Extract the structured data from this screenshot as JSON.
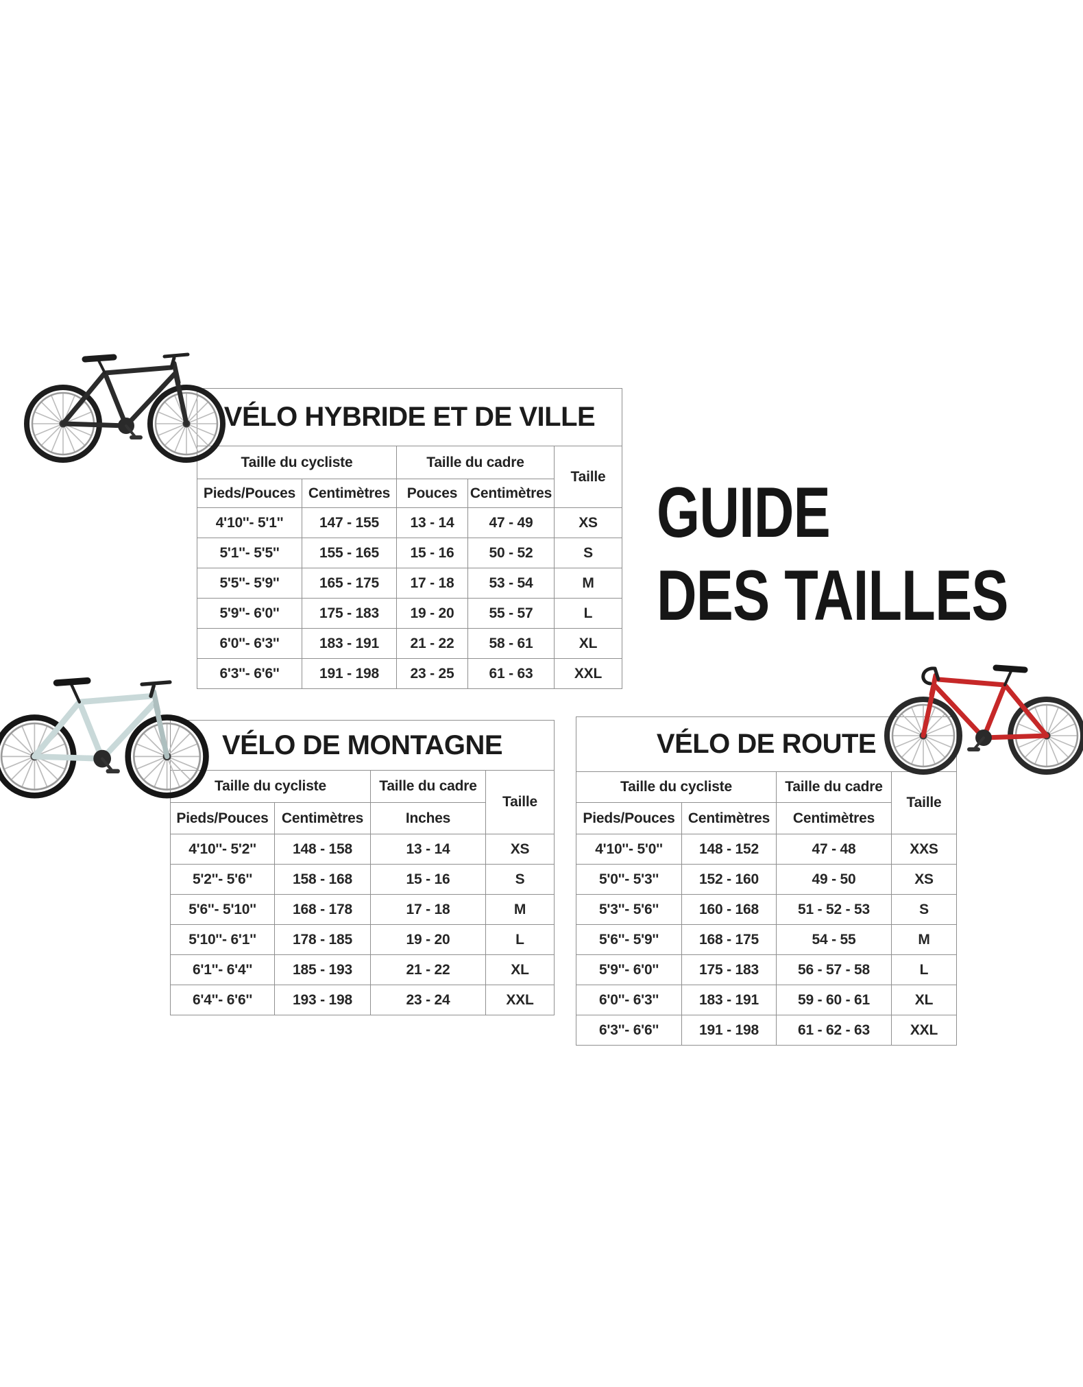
{
  "page_title": {
    "line1": "GUIDE",
    "line2": "DES TAILLES"
  },
  "images": {
    "hybrid_bike": "hybrid-city-bike-photo",
    "mountain_bike": "mountain-bike-photo",
    "road_bike": "road-bike-photo"
  },
  "tables": [
    {
      "id": "hybrid",
      "title": "VÉLO HYBRIDE ET DE VILLE",
      "rider_group_label": "Taille du cycliste",
      "frame_group_label": "Taille du cadre",
      "size_label": "Taille",
      "rider_columns": [
        "Pieds/Pouces",
        "Centimètres"
      ],
      "frame_columns": [
        "Pouces",
        "Centimètres"
      ],
      "rows": [
        [
          "4'10''- 5'1''",
          "147 - 155",
          "13 - 14",
          "47 - 49",
          "XS"
        ],
        [
          "5'1''- 5'5''",
          "155 - 165",
          "15 - 16",
          "50 - 52",
          "S"
        ],
        [
          "5'5''- 5'9''",
          "165 - 175",
          "17 - 18",
          "53 - 54",
          "M"
        ],
        [
          "5'9''- 6'0''",
          "175 - 183",
          "19 - 20",
          "55 - 57",
          "L"
        ],
        [
          "6'0''- 6'3''",
          "183 - 191",
          "21 - 22",
          "58 - 61",
          "XL"
        ],
        [
          "6'3''- 6'6''",
          "191 - 198",
          "23 - 25",
          "61 - 63",
          "XXL"
        ]
      ]
    },
    {
      "id": "mountain",
      "title": "VÉLO DE MONTAGNE",
      "rider_group_label": "Taille du cycliste",
      "frame_group_label": "Taille du cadre",
      "size_label": "Taille",
      "rider_columns": [
        "Pieds/Pouces",
        "Centimètres"
      ],
      "frame_columns": [
        "Inches"
      ],
      "rows": [
        [
          "4'10''- 5'2''",
          "148 - 158",
          "13 - 14",
          "XS"
        ],
        [
          "5'2''- 5'6''",
          "158 - 168",
          "15 - 16",
          "S"
        ],
        [
          "5'6''- 5'10''",
          "168 - 178",
          "17 - 18",
          "M"
        ],
        [
          "5'10''- 6'1''",
          "178 - 185",
          "19 - 20",
          "L"
        ],
        [
          "6'1''- 6'4''",
          "185 - 193",
          "21 - 22",
          "XL"
        ],
        [
          "6'4''- 6'6''",
          "193 - 198",
          "23 - 24",
          "XXL"
        ]
      ]
    },
    {
      "id": "road",
      "title": "VÉLO DE ROUTE",
      "rider_group_label": "Taille du cycliste",
      "frame_group_label": "Taille du cadre",
      "size_label": "Taille",
      "rider_columns": [
        "Pieds/Pouces",
        "Centimètres"
      ],
      "frame_columns": [
        "Centimètres"
      ],
      "rows": [
        [
          "4'10''- 5'0''",
          "148 - 152",
          "47 - 48",
          "XXS"
        ],
        [
          "5'0''- 5'3''",
          "152 - 160",
          "49 - 50",
          "XS"
        ],
        [
          "5'3''- 5'6''",
          "160 - 168",
          "51 - 52 - 53",
          "S"
        ],
        [
          "5'6''- 5'9''",
          "168 - 175",
          "54 - 55",
          "M"
        ],
        [
          "5'9''- 6'0''",
          "175 - 183",
          "56 - 57 - 58",
          "L"
        ],
        [
          "6'0''- 6'3''",
          "183 - 191",
          "59 - 60 - 61",
          "XL"
        ],
        [
          "6'3''- 6'6''",
          "191 - 198",
          "61 - 62 - 63",
          "XXL"
        ]
      ]
    }
  ]
}
